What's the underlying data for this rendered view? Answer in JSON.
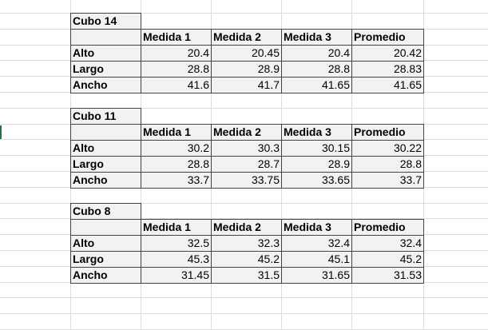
{
  "blocks": [
    {
      "title": "Cubo 14",
      "headers": [
        "Medida 1",
        "Medida 2",
        "Medida 3",
        "Promedio"
      ],
      "rows": [
        {
          "label": "Alto",
          "values": [
            "20.4",
            "20.45",
            "20.4",
            "20.42"
          ]
        },
        {
          "label": "Largo",
          "values": [
            "28.8",
            "28.9",
            "28.8",
            "28.83"
          ]
        },
        {
          "label": "Ancho",
          "values": [
            "41.6",
            "41.7",
            "41.65",
            "41.65"
          ]
        }
      ]
    },
    {
      "title": "Cubo 11",
      "headers": [
        "Medida 1",
        "Medida 2",
        "Medida 3",
        "Promedio"
      ],
      "rows": [
        {
          "label": "Alto",
          "values": [
            "30.2",
            "30.3",
            "30.15",
            "30.22"
          ]
        },
        {
          "label": "Largo",
          "values": [
            "28.8",
            "28.7",
            "28.9",
            "28.8"
          ]
        },
        {
          "label": "Ancho",
          "values": [
            "33.7",
            "33.75",
            "33.65",
            "33.7"
          ]
        }
      ]
    },
    {
      "title": "Cubo 8",
      "headers": [
        "Medida 1",
        "Medida 2",
        "Medida 3",
        "Promedio"
      ],
      "rows": [
        {
          "label": "Alto",
          "values": [
            "32.5",
            "32.3",
            "32.4",
            "32.4"
          ]
        },
        {
          "label": "Largo",
          "values": [
            "45.3",
            "45.2",
            "45.1",
            "45.2"
          ]
        },
        {
          "label": "Ancho",
          "values": [
            "31.45",
            "31.5",
            "31.65",
            "31.53"
          ]
        }
      ]
    }
  ]
}
